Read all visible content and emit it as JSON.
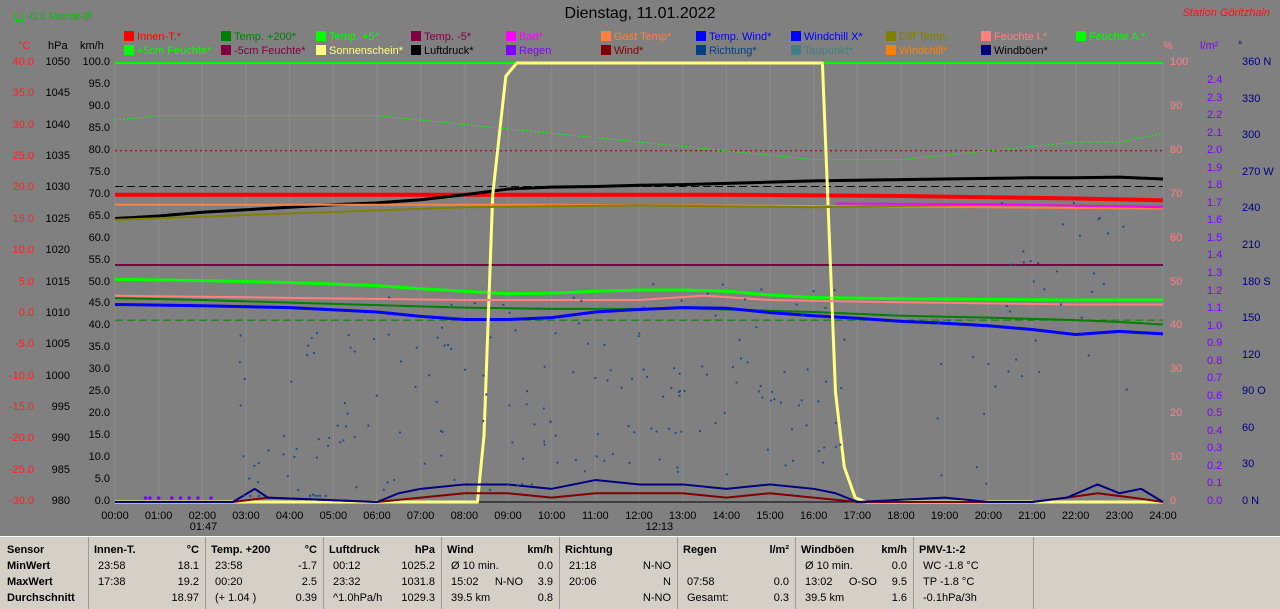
{
  "header": {
    "indicator": "-0.6 Monat-Ø",
    "title": "Dienstag, 11.01.2022",
    "station": "Station Göritzhain"
  },
  "legend": [
    {
      "label": "Innen-T.*",
      "color": "#ff0000"
    },
    {
      "label": "Temp. +200*",
      "color": "#008000"
    },
    {
      "label": "Temp. +5*",
      "color": "#00ff00"
    },
    {
      "label": "Temp. -5*",
      "color": "#800040"
    },
    {
      "label": "Bad*",
      "color": "#ff00ff"
    },
    {
      "label": "Gast Temp*",
      "color": "#ff8040"
    },
    {
      "label": "Temp. Wind*",
      "color": "#0000ff"
    },
    {
      "label": "Windchill X*",
      "color": "#0000ff"
    },
    {
      "label": "Diff Temp.",
      "color": "#808000"
    },
    {
      "label": "Feuchte I.*",
      "color": "#ff8080"
    },
    {
      "label": "Feuchte A.*",
      "color": "#00ff00"
    },
    {
      "label": "+5cm Feuchte*",
      "color": "#00ff00"
    },
    {
      "label": "-5cm Feuchte*",
      "color": "#800040"
    },
    {
      "label": "Sonnenschein*",
      "color": "#ffff80"
    },
    {
      "label": "Luftdruck*",
      "color": "#000000"
    },
    {
      "label": "Regen",
      "color": "#8000ff"
    },
    {
      "label": "Wind*",
      "color": "#800000"
    },
    {
      "label": "Richtung*",
      "color": "#004080"
    },
    {
      "label": "Taupunkt*",
      "color": "#408080"
    },
    {
      "label": "Windchill*",
      "color": "#ff8000"
    },
    {
      "label": "Windböen*",
      "color": "#000080"
    }
  ],
  "units": {
    "celsius": "°C",
    "hpa": "hPa",
    "kmh": "km/h",
    "percent": "%",
    "rain": "l/m²",
    "deg": "°"
  },
  "axes": {
    "celsius": [
      "40.0",
      "35.0",
      "30.0",
      "25.0",
      "20.0",
      "15.0",
      "10.0",
      "5.0",
      "0.0",
      "-5.0",
      "-10.0",
      "-15.0",
      "-20.0",
      "-25.0",
      "-30.0"
    ],
    "hpa": [
      "1050",
      "1045",
      "1040",
      "1035",
      "1030",
      "1025",
      "1020",
      "1015",
      "1010",
      "1005",
      "1000",
      "995",
      "990",
      "985",
      "980"
    ],
    "kmh": [
      "100.0",
      "95.0",
      "90.0",
      "85.0",
      "80.0",
      "75.0",
      "70.0",
      "65.0",
      "60.0",
      "55.0",
      "50.0",
      "45.0",
      "40.0",
      "35.0",
      "30.0",
      "25.0",
      "20.0",
      "15.0",
      "10.0",
      "5.0",
      "0.0"
    ],
    "percent": [
      "100",
      "90",
      "80",
      "70",
      "60",
      "50",
      "40",
      "30",
      "20",
      "10",
      "0"
    ],
    "rain": [
      "2.4",
      "2.3",
      "2.2",
      "2.1",
      "2.0",
      "1.9",
      "1.8",
      "1.7",
      "1.6",
      "1.5",
      "1.4",
      "1.3",
      "1.2",
      "1.1",
      "1.0",
      "0.9",
      "0.8",
      "0.7",
      "0.6",
      "0.5",
      "0.4",
      "0.3",
      "0.2",
      "0.1",
      "0.0"
    ],
    "dir": [
      "360 N",
      "330",
      "300",
      "270 W",
      "240",
      "210",
      "180 S",
      "150",
      "120",
      "90 O",
      "60",
      "30",
      "0 N"
    ],
    "time": [
      "00:00",
      "01:00",
      "02:00",
      "03:00",
      "04:00",
      "05:00",
      "06:00",
      "07:00",
      "08:00",
      "09:00",
      "10:00",
      "11:00",
      "12:00",
      "13:00",
      "14:00",
      "15:00",
      "16:00",
      "17:00",
      "18:00",
      "19:00",
      "20:00",
      "21:00",
      "22:00",
      "23:00",
      "24:00"
    ]
  },
  "markers": {
    "sunrise": "01:47",
    "noon": "12:13"
  },
  "chart_data": {
    "type": "line",
    "x_label_unit": "hours",
    "x_range": [
      0,
      24
    ],
    "ylim_celsius": [
      -30,
      40
    ],
    "ylim_hpa": [
      980,
      1050
    ],
    "ylim_kmh": [
      0,
      100
    ],
    "ylim_percent": [
      0,
      100
    ],
    "series": [
      {
        "name": "Innen-T.*",
        "axis": "celsius",
        "color": "#ff0000",
        "x": [
          0,
          2,
          4,
          6,
          8,
          10,
          12,
          14,
          16,
          18,
          20,
          22,
          24
        ],
        "y": [
          19.0,
          19.0,
          19.0,
          19.0,
          19.0,
          19.0,
          19.0,
          19.0,
          18.9,
          18.8,
          18.6,
          18.4,
          18.1
        ]
      },
      {
        "name": "Luftdruck*",
        "axis": "hpa",
        "color": "#000000",
        "x": [
          0,
          1,
          2,
          3,
          4,
          5,
          6,
          7,
          8,
          9,
          10,
          11,
          12,
          13,
          14,
          15,
          16,
          17,
          18,
          19,
          20,
          21,
          22,
          23,
          24
        ],
        "y": [
          1025.2,
          1025.6,
          1026.2,
          1026.6,
          1027.0,
          1027.4,
          1027.7,
          1028.2,
          1029.0,
          1029.9,
          1030.2,
          1030.3,
          1030.5,
          1030.6,
          1030.8,
          1031.0,
          1031.2,
          1031.3,
          1031.4,
          1031.5,
          1031.6,
          1031.7,
          1031.7,
          1031.8,
          1031.5
        ]
      },
      {
        "name": "Temp. +5*",
        "axis": "celsius",
        "color": "#00ff00",
        "x": [
          0,
          2,
          4,
          6,
          7,
          8,
          9,
          10,
          11,
          12,
          13,
          14,
          15,
          16,
          17,
          18,
          20,
          22,
          24
        ],
        "y": [
          5.5,
          5.3,
          5.0,
          4.5,
          4.0,
          3.6,
          3.2,
          3.3,
          3.6,
          3.8,
          3.8,
          3.6,
          3.0,
          2.6,
          2.5,
          2.4,
          2.3,
          2.2,
          2.2
        ]
      },
      {
        "name": "Temp. +200*",
        "axis": "celsius",
        "color": "#008000",
        "x": [
          0,
          2,
          4,
          6,
          8,
          10,
          12,
          13,
          14,
          16,
          18,
          20,
          22,
          23,
          24
        ],
        "y": [
          2.5,
          2.2,
          1.8,
          1.4,
          1.0,
          0.8,
          0.8,
          0.9,
          0.7,
          0.3,
          -0.3,
          -0.6,
          -1.0,
          -1.3,
          -1.7
        ]
      },
      {
        "name": "Windchill X*",
        "axis": "celsius",
        "color": "#0000ff",
        "x": [
          0,
          2,
          4,
          6,
          7,
          8,
          9,
          10,
          11,
          12,
          13,
          14,
          15,
          16,
          17,
          18,
          19,
          20,
          21,
          22,
          23,
          24
        ],
        "y": [
          1.5,
          1.3,
          1.0,
          0.3,
          -0.4,
          -0.9,
          -0.9,
          -0.6,
          0.3,
          0.7,
          1.0,
          0.9,
          0.2,
          -0.3,
          -0.7,
          -1.2,
          -1.5,
          -1.9,
          -2.5,
          -3.3,
          -2.8,
          -3.2
        ]
      },
      {
        "name": "Sonnenschein*",
        "axis": "percent",
        "color": "#ffff80",
        "x": [
          0,
          8.3,
          8.45,
          8.65,
          8.95,
          9.2,
          16.2,
          16.3,
          16.5,
          16.7,
          16.95,
          17.2,
          24
        ],
        "y": [
          0,
          0,
          15,
          70,
          97,
          100,
          100,
          75,
          25,
          8,
          1,
          0,
          0
        ]
      },
      {
        "name": "Wind*",
        "axis": "kmh",
        "color": "#800000",
        "x": [
          0,
          2.7,
          3.5,
          6,
          7,
          8,
          9,
          10,
          11,
          12,
          13,
          14,
          15,
          16,
          17,
          18,
          19,
          20,
          21,
          21.8,
          22.5,
          23.3,
          24
        ],
        "y": [
          0,
          0,
          1,
          0,
          1,
          2,
          2,
          1,
          2,
          2,
          2,
          1,
          2,
          1,
          0,
          0,
          0,
          0,
          0,
          1,
          2,
          1,
          0
        ]
      },
      {
        "name": "Windböen*",
        "axis": "kmh",
        "color": "#000080",
        "x": [
          0,
          2.7,
          3.2,
          3.5,
          6,
          6.5,
          7,
          8,
          9,
          10,
          11,
          12,
          13,
          14,
          15,
          16,
          16.5,
          17,
          19,
          20,
          21,
          21.8,
          22.5,
          23,
          23.5,
          24
        ],
        "y": [
          0,
          0,
          3,
          1,
          0,
          2,
          3,
          4,
          4,
          3,
          5,
          4,
          4,
          3,
          4,
          3,
          2,
          0,
          1,
          0,
          0,
          1,
          4,
          2,
          3,
          0
        ]
      }
    ],
    "reference_lines": [
      {
        "axis": "percent",
        "value": 100,
        "color": "#00ff00"
      },
      {
        "axis": "percent",
        "value": 80,
        "color": "#800000",
        "style": "dotted"
      },
      {
        "axis": "percent",
        "value": 54,
        "color": "#800040"
      },
      {
        "axis": "celsius",
        "value": -1.0,
        "color": "#008000",
        "style": "dashed"
      },
      {
        "axis": "hpa",
        "value": 1030.3,
        "color": "#000000",
        "style": "dashed"
      }
    ]
  },
  "stats": {
    "row_labels": [
      "Sensor",
      "MinWert",
      "MaxWert",
      "Durchschnitt"
    ],
    "panels": [
      {
        "title": "Innen-T.",
        "unit": "°C",
        "rows": [
          [
            "23:58",
            "",
            "18.1"
          ],
          [
            "17:38",
            "",
            "19.2"
          ],
          [
            "",
            "",
            "18.97"
          ]
        ]
      },
      {
        "title": "Temp. +200",
        "unit": "°C",
        "rows": [
          [
            "23:58",
            "",
            "-1.7"
          ],
          [
            "00:20",
            "",
            "2.5"
          ],
          [
            "(+ 1.04 )",
            "",
            "0.39"
          ]
        ]
      },
      {
        "title": "Luftdruck",
        "unit": "hPa",
        "rows": [
          [
            "00:12",
            "",
            "1025.2"
          ],
          [
            "23:32",
            "",
            "1031.8"
          ],
          [
            "^1.0hPa/h",
            "",
            "1029.3"
          ]
        ]
      },
      {
        "title": "Wind",
        "unit": "km/h",
        "rows": [
          [
            "Ø 10 min.",
            "",
            "0.0"
          ],
          [
            "15:02",
            "N-NO",
            "3.9"
          ],
          [
            "39.5 km",
            "",
            "0.8"
          ]
        ]
      },
      {
        "title": "Richtung",
        "unit": "",
        "rows": [
          [
            "21:18",
            "",
            "N-NO"
          ],
          [
            "20:06",
            "",
            "N"
          ],
          [
            "",
            "",
            "N-NO"
          ]
        ]
      },
      {
        "title": "Regen",
        "unit": "l/m²",
        "rows": [
          [
            "",
            "",
            ""
          ],
          [
            "07:58",
            "",
            "0.0"
          ],
          [
            "Gesamt:",
            "",
            "0.3"
          ]
        ]
      },
      {
        "title": "Windböen",
        "unit": "km/h",
        "rows": [
          [
            "Ø 10 min.",
            "",
            "0.0"
          ],
          [
            "13:02",
            "O-SO",
            "9.5"
          ],
          [
            "39.5 km",
            "",
            "1.6"
          ]
        ]
      },
      {
        "title": "PMV-1:-2",
        "unit": "",
        "rows": [
          [
            "WC -1.8 °C",
            "",
            ""
          ],
          [
            "TP -1.8 °C",
            "",
            ""
          ],
          [
            "-0.1hPa/3h",
            "",
            ""
          ]
        ]
      }
    ]
  }
}
